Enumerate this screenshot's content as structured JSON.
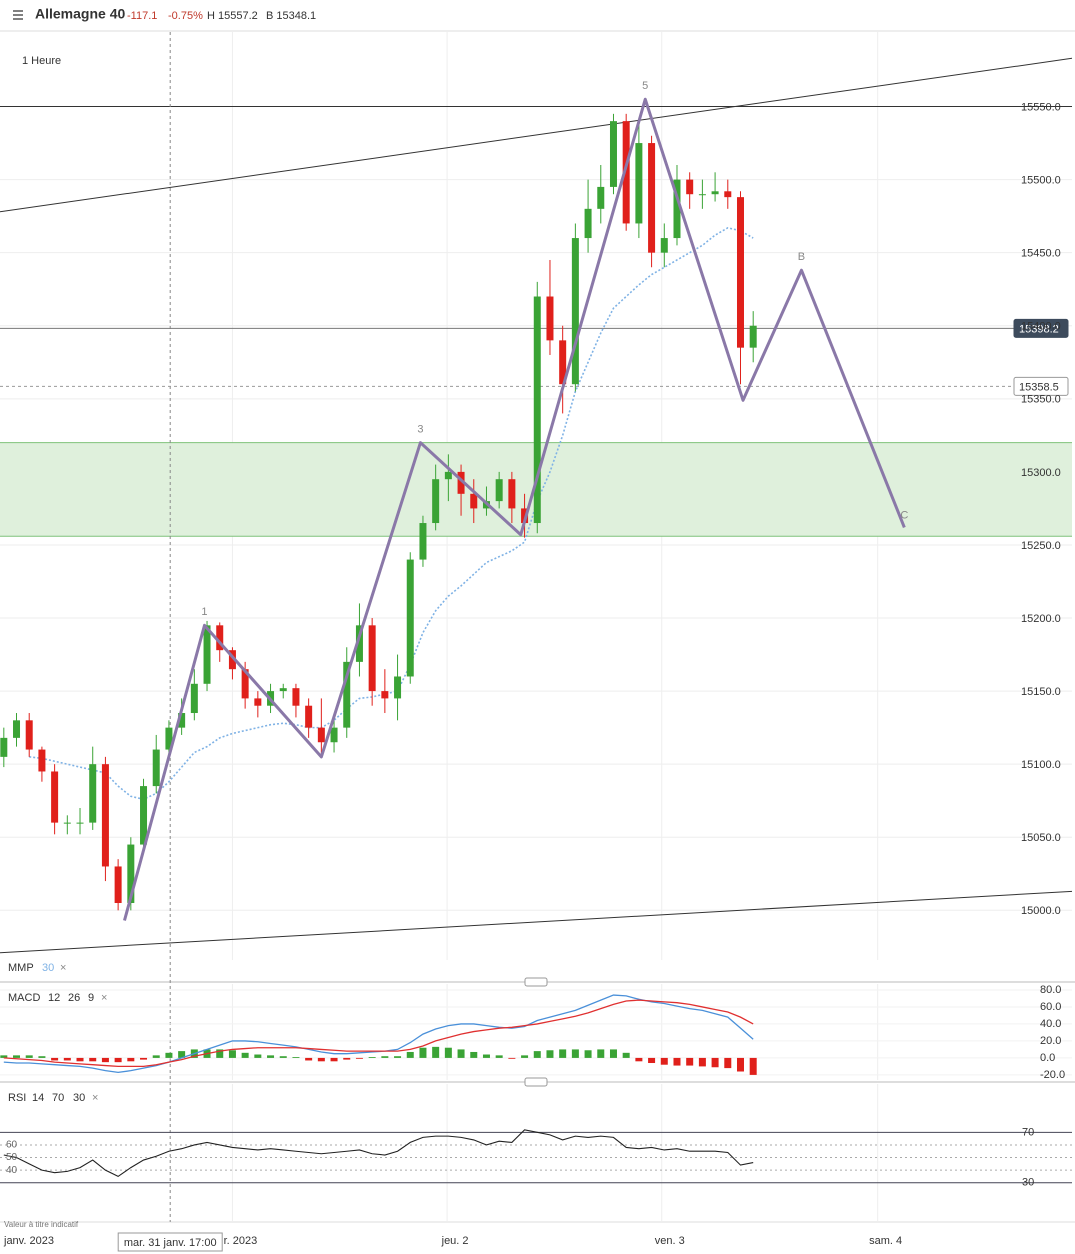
{
  "header": {
    "title": "Allemagne 40",
    "change": "-117.1",
    "change_pct": "-0.75%",
    "high": "H 15557.2",
    "low": "B 15348.1",
    "note": "Valeur à titre indicatif"
  },
  "chart_data": [
    {
      "type": "candlestick",
      "subtitle": "1 Heure",
      "xlim": [
        -0.3,
        84.1
      ],
      "ylim": [
        14966,
        15601
      ],
      "yticks": [
        {
          "value": 15000,
          "label": "15000.0"
        },
        {
          "value": 15050,
          "label": "15050.0"
        },
        {
          "value": 15100,
          "label": "15100.0"
        },
        {
          "value": 15150,
          "label": "15150.0"
        },
        {
          "value": 15200,
          "label": "15200.0"
        },
        {
          "value": 15250,
          "label": "15250.0"
        },
        {
          "value": 15300,
          "label": "15300.0"
        },
        {
          "value": 15350,
          "label": "15350.0"
        },
        {
          "value": 15400,
          "label": "15400.0"
        },
        {
          "value": 15450,
          "label": "15450.0"
        },
        {
          "value": 15500,
          "label": "15500.0"
        },
        {
          "value": 15550,
          "label": "15550.0"
        }
      ],
      "xticks": [
        {
          "value": 0.3,
          "label": "janv. 2023"
        },
        {
          "value": 18,
          "label": "r. 2023"
        },
        {
          "value": 34.9,
          "label": "jeu. 2"
        },
        {
          "value": 51.8,
          "label": "ven. 3"
        },
        {
          "value": 68.8,
          "label": "sam. 4"
        }
      ],
      "crosshair": {
        "x": 13.1,
        "label": "mar. 31 janv. 17:00"
      },
      "up_color": "#3aa335",
      "down_color": "#e0201b",
      "open": [
        15105,
        15118,
        15130,
        15110,
        15095,
        15060,
        15060,
        15060,
        15100,
        15030,
        15005,
        15045,
        15085,
        15110,
        15125,
        15135,
        15155,
        15195,
        15178,
        15165,
        15145,
        15140,
        15150,
        15152,
        15140,
        15125,
        15115,
        15125,
        15170,
        15195,
        15150,
        15145,
        15160,
        15240,
        15265,
        15295,
        15300,
        15285,
        15275,
        15280,
        15295,
        15275,
        15265,
        15420,
        15390,
        15360,
        15460,
        15480,
        15495,
        15540,
        15470,
        15525,
        15450,
        15460,
        15500,
        15490,
        15490,
        15492,
        15488,
        15385
      ],
      "high": [
        15125,
        15135,
        15135,
        15112,
        15100,
        15065,
        15070,
        15112,
        15105,
        15035,
        15050,
        15090,
        15120,
        15130,
        15145,
        15165,
        15198,
        15197,
        15180,
        15170,
        15150,
        15155,
        15155,
        15155,
        15145,
        15145,
        15130,
        15180,
        15210,
        15200,
        15165,
        15175,
        15245,
        15270,
        15305,
        15312,
        15305,
        15295,
        15290,
        15300,
        15300,
        15285,
        15430,
        15445,
        15400,
        15470,
        15500,
        15510,
        15545,
        15545,
        15540,
        15530,
        15470,
        15510,
        15505,
        15500,
        15505,
        15500,
        15492,
        15410
      ],
      "low": [
        15098,
        15112,
        15105,
        15088,
        15052,
        15052,
        15052,
        15055,
        15020,
        15000,
        15000,
        15040,
        15080,
        15105,
        15120,
        15130,
        15150,
        15170,
        15158,
        15138,
        15132,
        15135,
        15145,
        15132,
        15118,
        15105,
        15108,
        15118,
        15160,
        15140,
        15135,
        15130,
        15155,
        15235,
        15260,
        15280,
        15270,
        15265,
        15270,
        15275,
        15265,
        15255,
        15258,
        15380,
        15340,
        15355,
        15450,
        15470,
        15490,
        15465,
        15460,
        15440,
        15440,
        15455,
        15480,
        15480,
        15485,
        15480,
        15360,
        15375
      ],
      "close": [
        15118,
        15130,
        15110,
        15095,
        15060,
        15060,
        15060,
        15100,
        15030,
        15005,
        15045,
        15085,
        15110,
        15125,
        15135,
        15155,
        15195,
        15178,
        15165,
        15145,
        15140,
        15150,
        15152,
        15140,
        15125,
        15115,
        15125,
        15170,
        15195,
        15150,
        15145,
        15160,
        15240,
        15265,
        15295,
        15300,
        15285,
        15275,
        15280,
        15295,
        15275,
        15265,
        15420,
        15390,
        15360,
        15460,
        15480,
        15495,
        15540,
        15470,
        15525,
        15450,
        15460,
        15500,
        15490,
        15490,
        15492,
        15488,
        15385,
        15400
      ],
      "moving_average": {
        "name": "MMP",
        "period": 30,
        "color": "#7fb2e5",
        "values": [
          null,
          null,
          15105,
          15104,
          15102,
          15100,
          15098,
          15096,
          15094,
          15085,
          15078,
          15076,
          15080,
          15088,
          15098,
          15108,
          15112,
          15118,
          15121,
          15123,
          15125,
          15127,
          15128,
          15127,
          15125,
          15125,
          15130,
          15138,
          15145,
          15146,
          15148,
          15150,
          15168,
          15190,
          15205,
          15215,
          15222,
          15230,
          15238,
          15242,
          15246,
          15252,
          15280,
          15300,
          15325,
          15355,
          15375,
          15395,
          15412,
          15420,
          15428,
          15435,
          15440,
          15445,
          15450,
          15455,
          15462,
          15467,
          15465,
          15460
        ]
      },
      "waves": {
        "color": "#8a78a8",
        "x": [
          9.5,
          15.8,
          25,
          32.8,
          40.7,
          50.5,
          58.2,
          62.8,
          70.9
        ],
        "y": [
          14993,
          15195,
          15105,
          15320,
          15257,
          15555,
          15349,
          15438,
          15262
        ],
        "labels": [
          null,
          "1",
          null,
          "3",
          null,
          "5",
          null,
          "B",
          "C"
        ]
      },
      "channels": [
        {
          "x": [
            -0.3,
            84.1
          ],
          "y": [
            15478,
            15583
          ]
        },
        {
          "x": [
            -0.3,
            84.1
          ],
          "y": [
            14971,
            15013
          ]
        }
      ],
      "levels": [
        15550
      ],
      "zone": [
        15256,
        15320
      ],
      "price_tags": [
        {
          "value": 15398.2,
          "label": "15398.2"
        },
        {
          "value": 15358.5,
          "label": "15358.5"
        }
      ]
    },
    {
      "type": "macd",
      "title": "MACD",
      "params": [
        12,
        26,
        9
      ],
      "ylim": [
        -26,
        87
      ],
      "yticks": [
        {
          "value": 80,
          "label": "80.0"
        },
        {
          "value": 60,
          "label": "60.0"
        },
        {
          "value": 40,
          "label": "40.0"
        },
        {
          "value": 20,
          "label": "20.0"
        },
        {
          "value": 0,
          "label": "0.0"
        },
        {
          "value": -20,
          "label": "-20.0"
        }
      ],
      "series": [
        {
          "name": "MACD",
          "color": "#4a90d9",
          "values": [
            -5,
            -6,
            -6,
            -7,
            -8,
            -9,
            -10,
            -12,
            -15,
            -17,
            -15,
            -12,
            -9,
            -5,
            0,
            5,
            10,
            15,
            20,
            20,
            19,
            17,
            15,
            13,
            10,
            7,
            5,
            5,
            6,
            7,
            8,
            10,
            18,
            28,
            34,
            38,
            40,
            40,
            38,
            36,
            35,
            37,
            44,
            48,
            52,
            56,
            62,
            68,
            74,
            73,
            69,
            66,
            64,
            61,
            58,
            56,
            52,
            48,
            35,
            22
          ]
        },
        {
          "name": "Signal",
          "color": "#e03030",
          "values": [
            0,
            -1,
            -2,
            -3,
            -5,
            -6,
            -7,
            -8,
            -9,
            -10,
            -10,
            -10,
            -8,
            -5,
            -2,
            2,
            5,
            8,
            10,
            11,
            12,
            12,
            12,
            12,
            11,
            10,
            9,
            8,
            8,
            8,
            8,
            8,
            10,
            14,
            20,
            24,
            28,
            31,
            33,
            35,
            36,
            38,
            40,
            43,
            46,
            49,
            53,
            58,
            63,
            67,
            68,
            67,
            66,
            65,
            63,
            60,
            57,
            54,
            48,
            40
          ]
        }
      ],
      "histogram": [
        3,
        3,
        3,
        2,
        -3,
        -3,
        -4,
        -4,
        -5,
        -5,
        -4,
        -2,
        3,
        6,
        8,
        10,
        10,
        10,
        9,
        6,
        4,
        3,
        2,
        1,
        -3,
        -4,
        -4,
        -2,
        -1,
        1,
        2,
        2,
        7,
        12,
        13,
        12,
        10,
        7,
        4,
        3,
        -1,
        3,
        8,
        9,
        10,
        10,
        9,
        10,
        10,
        6,
        -4,
        -6,
        -8,
        -9,
        -9,
        -10,
        -11,
        -12,
        -16,
        -20
      ]
    },
    {
      "type": "rsi",
      "title": "RSI",
      "params": [
        14,
        70,
        30
      ],
      "ylim": [
        -1.2,
        108.4
      ],
      "yticks": [
        70,
        30
      ],
      "levels": [
        60,
        50,
        40
      ],
      "color": "#222",
      "values": [
        52,
        50,
        45,
        40,
        38,
        39,
        42,
        48,
        40,
        35,
        42,
        48,
        51,
        55,
        57,
        60,
        62,
        60,
        58,
        57,
        56,
        57,
        56,
        55,
        54,
        53,
        54,
        55,
        56,
        53,
        52,
        55,
        62,
        66,
        67,
        67,
        66,
        64,
        60,
        63,
        62,
        72,
        70,
        68,
        64,
        67,
        66,
        67,
        66,
        58,
        57,
        58,
        56,
        57,
        55,
        55,
        55,
        54,
        44,
        46
      ]
    }
  ]
}
